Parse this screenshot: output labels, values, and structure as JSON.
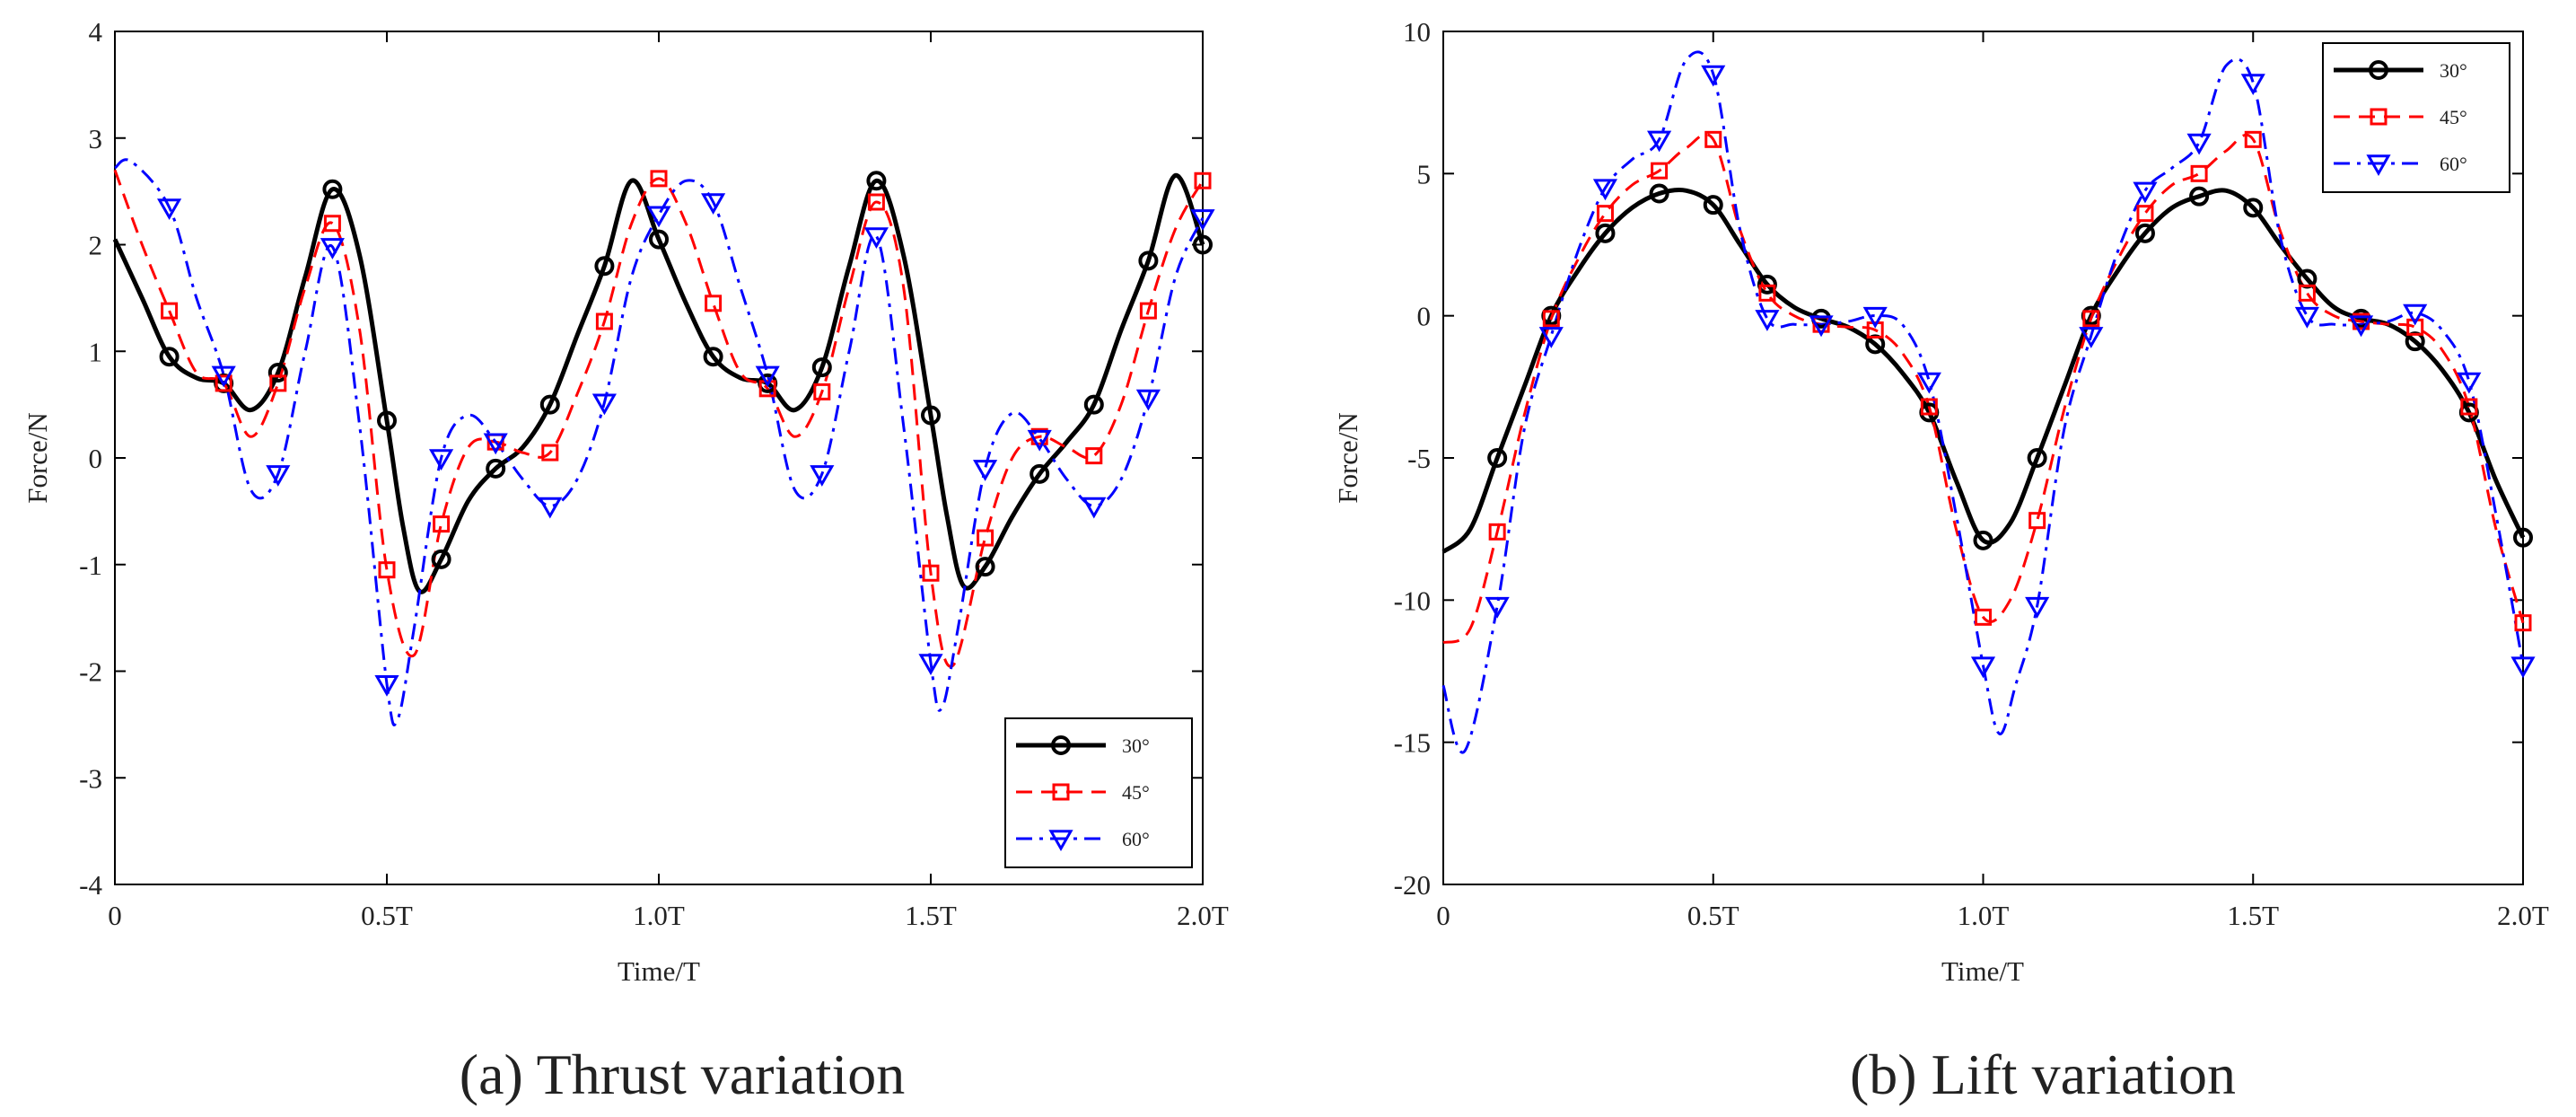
{
  "chart_data": [
    {
      "type": "line",
      "caption": "(a) Thrust variation",
      "title": "",
      "xlabel": "Time/T",
      "ylabel": "Force/N",
      "xlim": [
        0,
        2
      ],
      "ylim": [
        -4,
        4
      ],
      "xticks": [
        {
          "value": 0,
          "label": "0"
        },
        {
          "value": 0.5,
          "label": "0.5T"
        },
        {
          "value": 1.0,
          "label": "1.0T"
        },
        {
          "value": 1.5,
          "label": "1.5T"
        },
        {
          "value": 2.0,
          "label": "2.0T"
        }
      ],
      "yticks": [
        -4,
        -3,
        -2,
        -1,
        0,
        1,
        2,
        3,
        4
      ],
      "grid": false,
      "legend_position": "bottom-right",
      "series": [
        {
          "name": "30°",
          "color": "#000000",
          "line_style": "solid",
          "marker": "circle",
          "x": [
            0,
            0.05,
            0.1,
            0.15,
            0.2,
            0.25,
            0.3,
            0.35,
            0.4,
            0.45,
            0.5,
            0.53,
            0.56,
            0.6,
            0.65,
            0.7,
            0.75,
            0.8,
            0.85,
            0.9,
            0.95,
            1.0,
            1.05,
            1.1,
            1.15,
            1.2,
            1.25,
            1.3,
            1.35,
            1.4,
            1.45,
            1.5,
            1.53,
            1.56,
            1.6,
            1.65,
            1.7,
            1.75,
            1.8,
            1.85,
            1.9,
            1.95,
            2.0
          ],
          "y": [
            2.05,
            1.5,
            0.95,
            0.75,
            0.7,
            0.45,
            0.8,
            1.7,
            2.52,
            1.9,
            0.35,
            -0.65,
            -1.25,
            -0.95,
            -0.4,
            -0.1,
            0.1,
            0.5,
            1.15,
            1.8,
            2.6,
            2.05,
            1.45,
            0.95,
            0.75,
            0.7,
            0.45,
            0.85,
            1.8,
            2.6,
            1.9,
            0.4,
            -0.55,
            -1.2,
            -1.02,
            -0.55,
            -0.15,
            0.15,
            0.5,
            1.2,
            1.85,
            2.65,
            2.0
          ],
          "marker_x": [
            0.1,
            0.2,
            0.3,
            0.4,
            0.5,
            0.6,
            0.7,
            0.8,
            0.9,
            1.0,
            1.1,
            1.2,
            1.3,
            1.4,
            1.5,
            1.6,
            1.7,
            1.8,
            1.9,
            2.0
          ]
        },
        {
          "name": "45°",
          "color": "#ff0000",
          "line_style": "dashed",
          "marker": "square",
          "x": [
            0,
            0.05,
            0.1,
            0.15,
            0.2,
            0.25,
            0.3,
            0.35,
            0.4,
            0.45,
            0.5,
            0.55,
            0.6,
            0.65,
            0.7,
            0.75,
            0.8,
            0.85,
            0.9,
            0.95,
            1.0,
            1.05,
            1.1,
            1.15,
            1.2,
            1.25,
            1.3,
            1.35,
            1.4,
            1.45,
            1.5,
            1.54,
            1.6,
            1.65,
            1.7,
            1.75,
            1.8,
            1.85,
            1.9,
            1.95,
            2.0
          ],
          "y": [
            2.7,
            2.0,
            1.38,
            0.8,
            0.7,
            0.2,
            0.7,
            1.6,
            2.2,
            1.2,
            -1.05,
            -1.85,
            -0.62,
            0.1,
            0.15,
            0.05,
            0.05,
            0.6,
            1.28,
            2.2,
            2.62,
            2.2,
            1.45,
            0.8,
            0.65,
            0.2,
            0.62,
            1.6,
            2.4,
            1.6,
            -1.08,
            -1.95,
            -0.75,
            0.0,
            0.2,
            0.1,
            0.02,
            0.5,
            1.38,
            2.15,
            2.6
          ],
          "marker_x": [
            0.1,
            0.2,
            0.3,
            0.4,
            0.5,
            0.6,
            0.7,
            0.8,
            0.9,
            1.0,
            1.1,
            1.2,
            1.3,
            1.4,
            1.5,
            1.6,
            1.7,
            1.8,
            1.9,
            2.0
          ]
        },
        {
          "name": "60°",
          "color": "#0000ff",
          "line_style": "dashdot",
          "marker": "triangle-down",
          "x": [
            0,
            0.03,
            0.1,
            0.15,
            0.2,
            0.25,
            0.3,
            0.35,
            0.4,
            0.45,
            0.5,
            0.52,
            0.55,
            0.6,
            0.65,
            0.7,
            0.75,
            0.8,
            0.85,
            0.9,
            0.95,
            1.0,
            1.05,
            1.1,
            1.15,
            1.2,
            1.25,
            1.3,
            1.35,
            1.4,
            1.45,
            1.5,
            1.52,
            1.55,
            1.6,
            1.65,
            1.7,
            1.75,
            1.8,
            1.85,
            1.9,
            1.95,
            2.0
          ],
          "y": [
            2.72,
            2.78,
            2.35,
            1.5,
            0.78,
            -0.3,
            -0.15,
            1.0,
            1.98,
            0.3,
            -2.12,
            -2.45,
            -1.6,
            0.0,
            0.4,
            0.15,
            -0.2,
            -0.45,
            -0.2,
            0.52,
            1.7,
            2.28,
            2.6,
            2.4,
            1.6,
            0.78,
            -0.3,
            -0.15,
            1.0,
            2.08,
            0.3,
            -1.92,
            -2.35,
            -1.6,
            -0.1,
            0.42,
            0.18,
            -0.2,
            -0.45,
            -0.2,
            0.56,
            1.7,
            2.25
          ],
          "marker_x": [
            0.1,
            0.2,
            0.3,
            0.4,
            0.5,
            0.6,
            0.7,
            0.8,
            0.9,
            1.0,
            1.1,
            1.2,
            1.3,
            1.4,
            1.5,
            1.6,
            1.7,
            1.8,
            1.9,
            2.0
          ]
        }
      ]
    },
    {
      "type": "line",
      "caption": "(b) Lift variation",
      "title": "",
      "xlabel": "Time/T",
      "ylabel": "Force/N",
      "xlim": [
        0,
        2
      ],
      "ylim": [
        -20,
        10
      ],
      "xticks": [
        {
          "value": 0,
          "label": "0"
        },
        {
          "value": 0.5,
          "label": "0.5T"
        },
        {
          "value": 1.0,
          "label": "1.0T"
        },
        {
          "value": 1.5,
          "label": "1.5T"
        },
        {
          "value": 2.0,
          "label": "2.0T"
        }
      ],
      "yticks": [
        -20,
        -15,
        -10,
        -5,
        0,
        5,
        10
      ],
      "grid": false,
      "legend_position": "top-right",
      "series": [
        {
          "name": "30°",
          "color": "#000000",
          "line_style": "solid",
          "marker": "circle",
          "x": [
            0,
            0.05,
            0.1,
            0.15,
            0.2,
            0.25,
            0.3,
            0.35,
            0.4,
            0.45,
            0.5,
            0.55,
            0.6,
            0.65,
            0.7,
            0.75,
            0.8,
            0.85,
            0.9,
            0.95,
            1.0,
            1.05,
            1.1,
            1.15,
            1.2,
            1.25,
            1.3,
            1.35,
            1.4,
            1.45,
            1.5,
            1.55,
            1.6,
            1.65,
            1.7,
            1.75,
            1.8,
            1.85,
            1.9,
            1.95,
            2.0
          ],
          "y": [
            -8.3,
            -7.5,
            -5.0,
            -2.5,
            0.0,
            1.6,
            2.9,
            3.8,
            4.3,
            4.4,
            3.9,
            2.5,
            1.1,
            0.3,
            -0.1,
            -0.4,
            -1.0,
            -2.0,
            -3.4,
            -5.8,
            -7.9,
            -7.3,
            -5.0,
            -2.5,
            0.0,
            1.6,
            2.9,
            3.8,
            4.2,
            4.4,
            3.8,
            2.5,
            1.3,
            0.3,
            -0.1,
            -0.3,
            -0.9,
            -1.9,
            -3.4,
            -5.8,
            -7.8
          ],
          "marker_x": [
            0.1,
            0.2,
            0.3,
            0.4,
            0.5,
            0.6,
            0.7,
            0.8,
            0.9,
            1.0,
            1.1,
            1.2,
            1.3,
            1.4,
            1.5,
            1.6,
            1.7,
            1.8,
            1.9,
            2.0
          ]
        },
        {
          "name": "45°",
          "color": "#ff0000",
          "line_style": "dashed",
          "marker": "square",
          "x": [
            0,
            0.05,
            0.1,
            0.15,
            0.2,
            0.25,
            0.3,
            0.35,
            0.4,
            0.45,
            0.5,
            0.55,
            0.6,
            0.65,
            0.7,
            0.75,
            0.8,
            0.85,
            0.9,
            0.95,
            1.0,
            1.05,
            1.1,
            1.15,
            1.2,
            1.25,
            1.3,
            1.35,
            1.4,
            1.45,
            1.5,
            1.55,
            1.6,
            1.65,
            1.7,
            1.75,
            1.8,
            1.85,
            1.9,
            1.95,
            2.0
          ],
          "y": [
            -11.5,
            -11.0,
            -7.6,
            -3.5,
            -0.1,
            2.0,
            3.6,
            4.6,
            5.1,
            5.9,
            6.2,
            3.0,
            0.8,
            0.0,
            -0.3,
            -0.4,
            -0.5,
            -1.3,
            -3.2,
            -7.5,
            -10.6,
            -10.0,
            -7.2,
            -3.3,
            -0.1,
            2.0,
            3.6,
            4.6,
            5.0,
            5.8,
            6.2,
            3.0,
            0.8,
            0.0,
            -0.2,
            -0.3,
            -0.4,
            -1.2,
            -3.2,
            -7.5,
            -10.8
          ],
          "marker_x": [
            0.1,
            0.2,
            0.3,
            0.4,
            0.5,
            0.6,
            0.7,
            0.8,
            0.9,
            1.0,
            1.1,
            1.2,
            1.3,
            1.4,
            1.5,
            1.6,
            1.7,
            1.8,
            1.9,
            2.0
          ]
        },
        {
          "name": "60°",
          "color": "#0000ff",
          "line_style": "dashdot",
          "marker": "triangle-down",
          "x": [
            0,
            0.04,
            0.1,
            0.15,
            0.2,
            0.25,
            0.3,
            0.35,
            0.4,
            0.45,
            0.5,
            0.55,
            0.6,
            0.65,
            0.7,
            0.75,
            0.8,
            0.85,
            0.9,
            0.95,
            1.0,
            1.03,
            1.06,
            1.1,
            1.15,
            1.2,
            1.25,
            1.3,
            1.35,
            1.4,
            1.45,
            1.5,
            1.55,
            1.6,
            1.65,
            1.7,
            1.75,
            1.8,
            1.85,
            1.9,
            1.95,
            2.0
          ],
          "y": [
            -13.0,
            -15.3,
            -10.2,
            -4.0,
            -0.7,
            2.3,
            4.5,
            5.5,
            6.2,
            9.0,
            8.5,
            3.0,
            -0.1,
            -0.3,
            -0.3,
            -0.2,
            0.0,
            -0.3,
            -2.3,
            -7.0,
            -12.3,
            -14.7,
            -13.0,
            -10.2,
            -4.0,
            -0.7,
            2.3,
            4.4,
            5.2,
            6.1,
            8.8,
            8.2,
            2.8,
            0.0,
            -0.3,
            -0.3,
            -0.2,
            0.1,
            -0.5,
            -2.3,
            -7.0,
            -12.3
          ],
          "marker_x": [
            0.1,
            0.2,
            0.3,
            0.4,
            0.5,
            0.6,
            0.7,
            0.8,
            0.9,
            1.0,
            1.1,
            1.2,
            1.3,
            1.4,
            1.5,
            1.6,
            1.7,
            1.8,
            1.9,
            2.0
          ]
        }
      ]
    }
  ]
}
